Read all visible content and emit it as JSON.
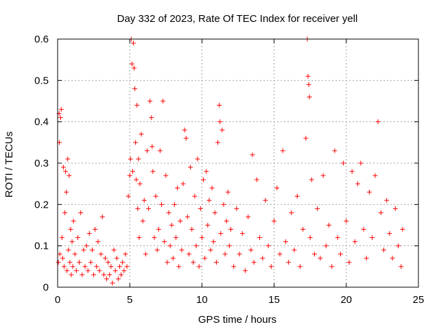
{
  "chart_data": {
    "type": "scatter",
    "title": "Day 332 of 2023, Rate Of TEC Index for receiver yell",
    "xlabel": "GPS time / hours",
    "ylabel": "ROTI / TECUs",
    "xlim": [
      0,
      25
    ],
    "ylim": [
      0,
      0.6
    ],
    "xticks": [
      "0",
      "5",
      "10",
      "15",
      "20",
      "25"
    ],
    "yticks": [
      "0",
      "0.1",
      "0.2",
      "0.3",
      "0.4",
      "0.5",
      "0.6"
    ],
    "grid": true,
    "marker": "plus",
    "color": "#ff0000",
    "series": [
      {
        "values": [
          [
            0.05,
            0.06
          ],
          [
            0.1,
            0.42
          ],
          [
            0.12,
            0.35
          ],
          [
            0.15,
            0.08
          ],
          [
            0.2,
            0.41
          ],
          [
            0.25,
            0.43
          ],
          [
            0.3,
            0.12
          ],
          [
            0.35,
            0.07
          ],
          [
            0.4,
            0.29
          ],
          [
            0.45,
            0.05
          ],
          [
            0.5,
            0.18
          ],
          [
            0.55,
            0.28
          ],
          [
            0.6,
            0.23
          ],
          [
            0.65,
            0.04
          ],
          [
            0.7,
            0.31
          ],
          [
            0.75,
            0.09
          ],
          [
            0.8,
            0.27
          ],
          [
            0.85,
            0.06
          ],
          [
            0.9,
            0.14
          ],
          [
            0.95,
            0.03
          ],
          [
            1.0,
            0.11
          ],
          [
            1.05,
            0.05
          ],
          [
            1.1,
            0.16
          ],
          [
            1.2,
            0.08
          ],
          [
            1.3,
            0.04
          ],
          [
            1.4,
            0.12
          ],
          [
            1.5,
            0.06
          ],
          [
            1.6,
            0.18
          ],
          [
            1.7,
            0.03
          ],
          [
            1.8,
            0.09
          ],
          [
            1.9,
            0.05
          ],
          [
            2.0,
            0.1
          ],
          [
            2.1,
            0.04
          ],
          [
            2.2,
            0.13
          ],
          [
            2.3,
            0.06
          ],
          [
            2.4,
            0.09
          ],
          [
            2.5,
            0.03
          ],
          [
            2.6,
            0.14
          ],
          [
            2.7,
            0.05
          ],
          [
            2.8,
            0.11
          ],
          [
            2.9,
            0.04
          ],
          [
            3.0,
            0.08
          ],
          [
            3.1,
            0.17
          ],
          [
            3.2,
            0.03
          ],
          [
            3.3,
            0.07
          ],
          [
            3.4,
            0.02
          ],
          [
            3.5,
            0.06
          ],
          [
            3.6,
            0.03
          ],
          [
            3.7,
            0.05
          ],
          [
            3.8,
            0.01
          ],
          [
            3.9,
            0.09
          ],
          [
            4.0,
            0.04
          ],
          [
            4.1,
            0.07
          ],
          [
            4.2,
            0.02
          ],
          [
            4.3,
            0.05
          ],
          [
            4.4,
            0.03
          ],
          [
            4.5,
            0.06
          ],
          [
            4.6,
            0.04
          ],
          [
            4.7,
            0.08
          ],
          [
            4.8,
            0.05
          ],
          [
            4.9,
            0.22
          ],
          [
            5.0,
            0.27
          ],
          [
            5.05,
            0.31
          ],
          [
            5.1,
            0.6
          ],
          [
            5.15,
            0.54
          ],
          [
            5.2,
            0.28
          ],
          [
            5.25,
            0.59
          ],
          [
            5.3,
            0.53
          ],
          [
            5.35,
            0.48
          ],
          [
            5.4,
            0.35
          ],
          [
            5.45,
            0.26
          ],
          [
            5.5,
            0.44
          ],
          [
            5.55,
            0.19
          ],
          [
            5.6,
            0.31
          ],
          [
            5.65,
            0.12
          ],
          [
            5.7,
            0.25
          ],
          [
            5.8,
            0.37
          ],
          [
            5.9,
            0.16
          ],
          [
            6.0,
            0.21
          ],
          [
            6.1,
            0.08
          ],
          [
            6.2,
            0.33
          ],
          [
            6.3,
            0.19
          ],
          [
            6.4,
            0.45
          ],
          [
            6.5,
            0.41
          ],
          [
            6.55,
            0.34
          ],
          [
            6.6,
            0.28
          ],
          [
            6.7,
            0.12
          ],
          [
            6.8,
            0.22
          ],
          [
            6.9,
            0.09
          ],
          [
            7.0,
            0.14
          ],
          [
            7.1,
            0.33
          ],
          [
            7.2,
            0.2
          ],
          [
            7.3,
            0.45
          ],
          [
            7.4,
            0.11
          ],
          [
            7.5,
            0.27
          ],
          [
            7.6,
            0.06
          ],
          [
            7.7,
            0.18
          ],
          [
            7.8,
            0.1
          ],
          [
            7.9,
            0.15
          ],
          [
            8.0,
            0.07
          ],
          [
            8.1,
            0.2
          ],
          [
            8.2,
            0.12
          ],
          [
            8.3,
            0.24
          ],
          [
            8.4,
            0.05
          ],
          [
            8.5,
            0.16
          ],
          [
            8.6,
            0.09
          ],
          [
            8.7,
            0.25
          ],
          [
            8.8,
            0.38
          ],
          [
            8.9,
            0.36
          ],
          [
            9.0,
            0.17
          ],
          [
            9.1,
            0.08
          ],
          [
            9.2,
            0.29
          ],
          [
            9.3,
            0.14
          ],
          [
            9.4,
            0.06
          ],
          [
            9.5,
            0.22
          ],
          [
            9.6,
            0.1
          ],
          [
            9.7,
            0.31
          ],
          [
            9.8,
            0.05
          ],
          [
            9.9,
            0.19
          ],
          [
            10.0,
            0.12
          ],
          [
            10.1,
            0.26
          ],
          [
            10.2,
            0.07
          ],
          [
            10.3,
            0.28
          ],
          [
            10.4,
            0.15
          ],
          [
            10.5,
            0.21
          ],
          [
            10.6,
            0.09
          ],
          [
            10.7,
            0.24
          ],
          [
            10.8,
            0.11
          ],
          [
            10.9,
            0.18
          ],
          [
            11.0,
            0.06
          ],
          [
            11.1,
            0.35
          ],
          [
            11.2,
            0.44
          ],
          [
            11.25,
            0.4
          ],
          [
            11.3,
            0.13
          ],
          [
            11.4,
            0.38
          ],
          [
            11.5,
            0.2
          ],
          [
            11.6,
            0.08
          ],
          [
            11.7,
            0.16
          ],
          [
            11.8,
            0.23
          ],
          [
            11.9,
            0.1
          ],
          [
            12.0,
            0.14
          ],
          [
            12.2,
            0.05
          ],
          [
            12.4,
            0.19
          ],
          [
            12.6,
            0.08
          ],
          [
            12.8,
            0.13
          ],
          [
            13.0,
            0.04
          ],
          [
            13.2,
            0.17
          ],
          [
            13.4,
            0.09
          ],
          [
            13.5,
            0.32
          ],
          [
            13.6,
            0.06
          ],
          [
            13.8,
            0.26
          ],
          [
            14.0,
            0.12
          ],
          [
            14.2,
            0.07
          ],
          [
            14.4,
            0.21
          ],
          [
            14.6,
            0.1
          ],
          [
            14.8,
            0.05
          ],
          [
            15.0,
            0.16
          ],
          [
            15.2,
            0.24
          ],
          [
            15.4,
            0.08
          ],
          [
            15.6,
            0.33
          ],
          [
            15.8,
            0.11
          ],
          [
            16.0,
            0.06
          ],
          [
            16.2,
            0.18
          ],
          [
            16.4,
            0.09
          ],
          [
            16.6,
            0.22
          ],
          [
            16.8,
            0.05
          ],
          [
            17.0,
            0.14
          ],
          [
            17.2,
            0.36
          ],
          [
            17.3,
            0.6
          ],
          [
            17.35,
            0.51
          ],
          [
            17.4,
            0.49
          ],
          [
            17.45,
            0.46
          ],
          [
            17.5,
            0.12
          ],
          [
            17.6,
            0.26
          ],
          [
            17.8,
            0.08
          ],
          [
            18.0,
            0.19
          ],
          [
            18.2,
            0.07
          ],
          [
            18.4,
            0.27
          ],
          [
            18.6,
            0.1
          ],
          [
            18.8,
            0.15
          ],
          [
            19.0,
            0.05
          ],
          [
            19.2,
            0.33
          ],
          [
            19.4,
            0.12
          ],
          [
            19.6,
            0.08
          ],
          [
            19.8,
            0.3
          ],
          [
            20.0,
            0.16
          ],
          [
            20.2,
            0.06
          ],
          [
            20.4,
            0.28
          ],
          [
            20.6,
            0.11
          ],
          [
            20.8,
            0.25
          ],
          [
            21.0,
            0.3
          ],
          [
            21.2,
            0.14
          ],
          [
            21.4,
            0.07
          ],
          [
            21.6,
            0.23
          ],
          [
            21.8,
            0.12
          ],
          [
            22.0,
            0.27
          ],
          [
            22.2,
            0.4
          ],
          [
            22.4,
            0.18
          ],
          [
            22.6,
            0.09
          ],
          [
            22.8,
            0.21
          ],
          [
            23.0,
            0.13
          ],
          [
            23.2,
            0.07
          ],
          [
            23.4,
            0.19
          ],
          [
            23.6,
            0.1
          ],
          [
            23.8,
            0.05
          ],
          [
            23.9,
            0.14
          ]
        ]
      }
    ]
  }
}
